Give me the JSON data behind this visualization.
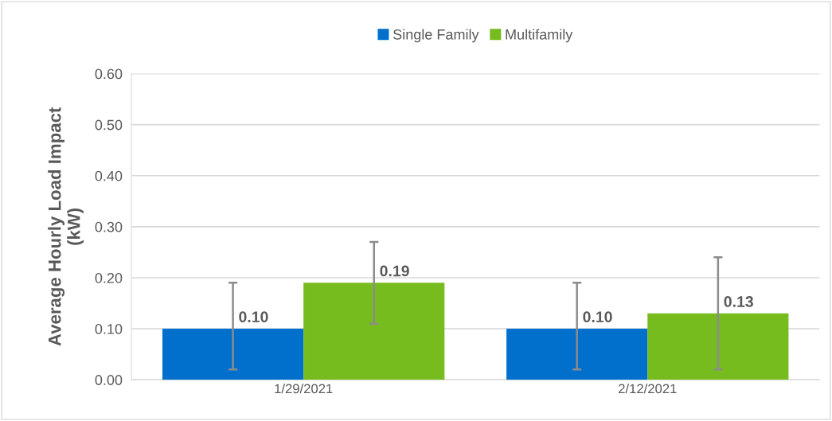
{
  "chart_data": {
    "type": "bar",
    "ylabel": "Average Hourly Load Impact\n(kW)",
    "categories": [
      "1/29/2021",
      "2/12/2021"
    ],
    "series": [
      {
        "name": "Single Family",
        "color": "#0070cc",
        "values": [
          0.1,
          0.1
        ],
        "value_labels": [
          "0.10",
          "0.10"
        ],
        "errors": [
          [
            0.02,
            0.19
          ],
          [
            0.02,
            0.19
          ]
        ]
      },
      {
        "name": "Multifamily",
        "color": "#77bc1f",
        "values": [
          0.19,
          0.13
        ],
        "value_labels": [
          "0.19",
          "0.13"
        ],
        "errors": [
          [
            0.11,
            0.27
          ],
          [
            0.02,
            0.24
          ]
        ]
      }
    ],
    "ylim": [
      0,
      0.6
    ],
    "yticks": [
      {
        "value": 0,
        "label": "0.00"
      },
      {
        "value": 0.1,
        "label": "0.10"
      },
      {
        "value": 0.2,
        "label": "0.20"
      },
      {
        "value": 0.3,
        "label": "0.30"
      },
      {
        "value": 0.4,
        "label": "0.40"
      },
      {
        "value": 0.5,
        "label": "0.50"
      },
      {
        "value": 0.6,
        "label": "0.60"
      }
    ],
    "grid": "y",
    "legend": "top"
  }
}
